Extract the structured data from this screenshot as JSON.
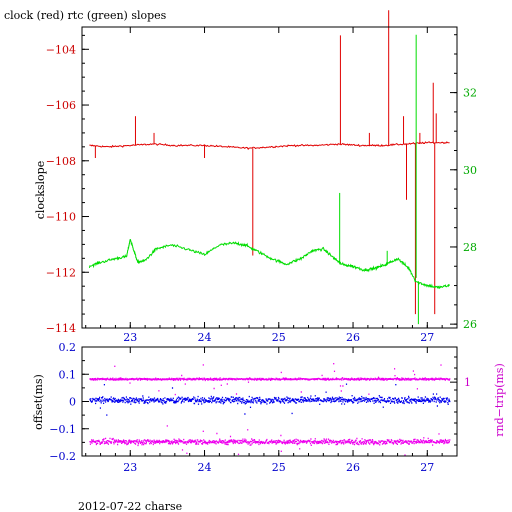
{
  "title": "clock (red) rtc (green) slopes",
  "footer": "2012-07-22 charse",
  "colors": {
    "red": "#e00000",
    "green": "#00dd00",
    "blue": "#0000ee",
    "magenta": "#ee00ee",
    "frame": "#000000"
  },
  "chart_data": [
    {
      "type": "line",
      "ylabel": "clockslope",
      "y_right_label": "",
      "xlim": [
        22.35,
        27.4
      ],
      "ylim": [
        -114,
        -103.2
      ],
      "ylim_right": [
        25.9,
        33.7
      ],
      "x_ticks": [
        23,
        24,
        25,
        26,
        27
      ],
      "x_tick_labels": [
        "23",
        "24",
        "25",
        "26",
        "27"
      ],
      "y_ticks": [
        -114,
        -112,
        -110,
        -108,
        -106,
        -104
      ],
      "y_tick_labels": [
        "−114",
        "−112",
        "−110",
        "−108",
        "−106",
        "−104"
      ],
      "y_right_ticks": [
        26,
        28,
        30,
        32
      ],
      "y_right_tick_labels": [
        "26",
        "28",
        "30",
        "32"
      ],
      "series": [
        {
          "name": "clock",
          "axis": "left",
          "color": "#e00000",
          "x": [
            22.45,
            22.7,
            23.0,
            23.3,
            23.6,
            24.0,
            24.3,
            24.6,
            24.9,
            25.2,
            25.5,
            25.8,
            26.1,
            26.4,
            26.7,
            27.0,
            27.3
          ],
          "y": [
            -107.45,
            -107.5,
            -107.45,
            -107.4,
            -107.45,
            -107.45,
            -107.5,
            -107.55,
            -107.5,
            -107.45,
            -107.45,
            -107.4,
            -107.45,
            -107.45,
            -107.4,
            -107.35,
            -107.35
          ],
          "spikes": [
            {
              "x": 22.53,
              "y0": -107.45,
              "y1": -107.9
            },
            {
              "x": 23.07,
              "y0": -107.45,
              "y1": -106.4
            },
            {
              "x": 23.32,
              "y0": -107.4,
              "y1": -107.0
            },
            {
              "x": 24.0,
              "y0": -107.45,
              "y1": -107.9
            },
            {
              "x": 24.65,
              "y0": -107.55,
              "y1": -111.4
            },
            {
              "x": 25.83,
              "y0": -107.4,
              "y1": -103.5
            },
            {
              "x": 26.22,
              "y0": -107.45,
              "y1": -107.0
            },
            {
              "x": 26.48,
              "y0": -107.45,
              "y1": -102.6
            },
            {
              "x": 26.68,
              "y0": -107.4,
              "y1": -106.4
            },
            {
              "x": 26.72,
              "y0": -107.4,
              "y1": -109.4
            },
            {
              "x": 26.84,
              "y0": -107.4,
              "y1": -113.5
            },
            {
              "x": 26.9,
              "y0": -107.4,
              "y1": -107.0
            },
            {
              "x": 27.08,
              "y0": -107.35,
              "y1": -105.2
            },
            {
              "x": 27.12,
              "y0": -107.35,
              "y1": -106.3
            },
            {
              "x": 27.1,
              "y0": -107.35,
              "y1": -113.5
            }
          ]
        },
        {
          "name": "rtc",
          "axis": "right",
          "color": "#00dd00",
          "x": [
            22.45,
            22.6,
            22.8,
            22.95,
            23.0,
            23.05,
            23.1,
            23.2,
            23.35,
            23.55,
            23.75,
            24.0,
            24.2,
            24.4,
            24.55,
            24.7,
            24.9,
            25.1,
            25.3,
            25.45,
            25.6,
            25.75,
            25.85,
            26.0,
            26.15,
            26.3,
            26.45,
            26.6,
            26.75,
            26.85,
            27.0,
            27.15,
            27.3
          ],
          "y": [
            27.5,
            27.6,
            27.7,
            27.75,
            28.2,
            27.9,
            27.6,
            27.65,
            27.95,
            28.05,
            27.95,
            27.8,
            28.05,
            28.1,
            28.05,
            27.9,
            27.7,
            27.55,
            27.7,
            27.9,
            27.95,
            27.7,
            27.55,
            27.5,
            27.4,
            27.45,
            27.55,
            27.7,
            27.45,
            27.1,
            27.0,
            26.95,
            27.0
          ],
          "spikes": [
            {
              "x": 25.82,
              "y0": 27.55,
              "y1": 29.4
            },
            {
              "x": 26.46,
              "y0": 27.55,
              "y1": 27.9
            },
            {
              "x": 26.85,
              "y0": 27.2,
              "y1": 33.5
            },
            {
              "x": 26.88,
              "y0": 27.1,
              "y1": 26.0
            }
          ]
        }
      ]
    },
    {
      "type": "scatter",
      "ylabel": "offset(ms)",
      "y_right_label": "rnd−trip(ms)",
      "xlim": [
        22.35,
        27.4
      ],
      "ylim": [
        -0.2,
        0.2
      ],
      "x_ticks": [
        23,
        24,
        25,
        26,
        27
      ],
      "x_tick_labels": [
        "23",
        "24",
        "25",
        "26",
        "27"
      ],
      "y_ticks": [
        -0.2,
        -0.1,
        0,
        0.1,
        0.2
      ],
      "y_tick_labels": [
        "−0.2",
        "−0.1",
        "0",
        "0.1",
        "0.2"
      ],
      "y_right_ticks": [
        1
      ],
      "y_right_tick_labels": [
        "1"
      ],
      "series": [
        {
          "name": "offset",
          "color": "#0000ee",
          "x_range": [
            22.45,
            27.3
          ],
          "center": 0.005,
          "spread": 0.01,
          "axis": "left"
        },
        {
          "name": "rnd-trip",
          "color": "#ee00ee",
          "x_range": [
            22.45,
            27.3
          ],
          "center": 0.082,
          "spread": 0.003,
          "axis": "left"
        },
        {
          "name": "rnd-trip",
          "color": "#ee00ee",
          "x_range": [
            22.45,
            27.3
          ],
          "center": -0.148,
          "spread": 0.008,
          "axis": "left"
        }
      ]
    }
  ]
}
